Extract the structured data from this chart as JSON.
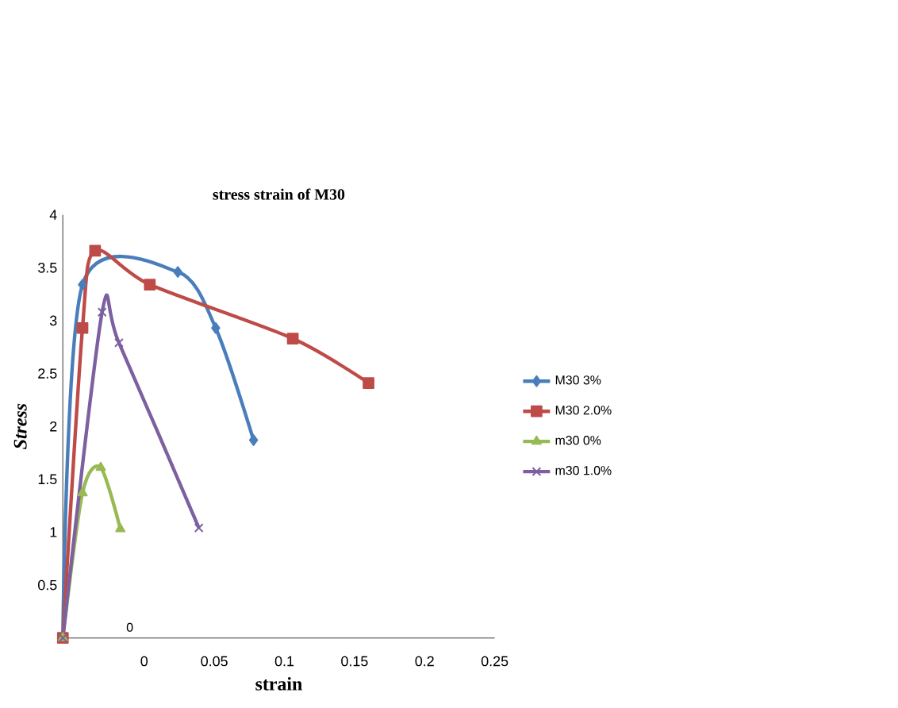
{
  "chart_data": {
    "type": "line",
    "title": "stress strain of M30",
    "xlabel": "strain",
    "ylabel": "Stress",
    "xlim": [
      -0.058,
      0.25
    ],
    "ylim": [
      0,
      4
    ],
    "xticks": [
      0,
      0.05,
      0.1,
      0.15,
      0.2,
      0.25
    ],
    "yticks": [
      0.5,
      1,
      1.5,
      2,
      2.5,
      3,
      3.5,
      4
    ],
    "grid": false,
    "legend": "right",
    "annotations": [
      "0"
    ],
    "series": [
      {
        "name": "M30 3%",
        "color": "#4a7ebb",
        "marker": "diamond",
        "x": [
          -0.058,
          -0.044,
          0.024,
          0.051,
          0.078
        ],
        "values": [
          0,
          3.34,
          3.46,
          2.93,
          1.87
        ]
      },
      {
        "name": "M30 2.0%",
        "color": "#be4b48",
        "marker": "square",
        "x": [
          -0.058,
          -0.044,
          -0.035,
          0.004,
          0.106,
          0.16
        ],
        "values": [
          0,
          2.93,
          3.66,
          3.34,
          2.83,
          2.41
        ]
      },
      {
        "name": "m30 0%",
        "color": "#98b954",
        "marker": "triangle",
        "x": [
          -0.058,
          -0.044,
          -0.031,
          -0.017
        ],
        "values": [
          0,
          1.37,
          1.61,
          1.03
        ]
      },
      {
        "name": "m30 1.0%",
        "color": "#7d60a0",
        "marker": "cross",
        "x": [
          -0.058,
          -0.03,
          -0.018,
          0.039
        ],
        "values": [
          0,
          3.08,
          2.79,
          1.04
        ]
      }
    ]
  }
}
